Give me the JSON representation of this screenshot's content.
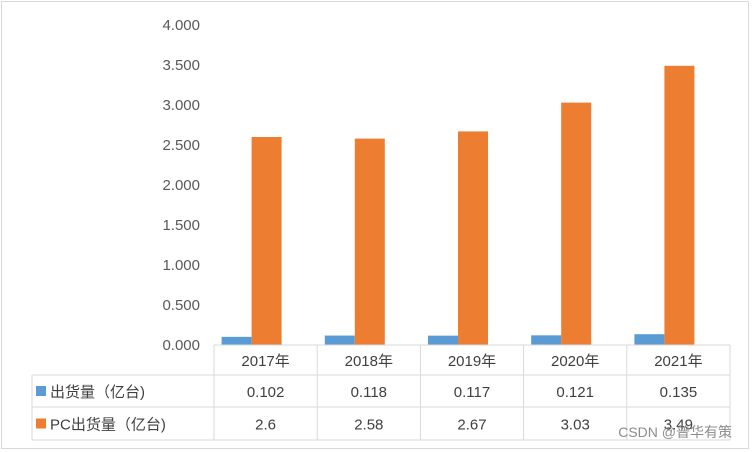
{
  "chart_data": {
    "type": "bar",
    "title": "",
    "xlabel": "",
    "ylabel": "",
    "categories": [
      "2017年",
      "2018年",
      "2019年",
      "2020年",
      "2021年"
    ],
    "series": [
      {
        "name": "出货量（亿台)",
        "values": [
          0.102,
          0.118,
          0.117,
          0.121,
          0.135
        ],
        "labels": [
          "0.102",
          "0.118",
          "0.117",
          "0.121",
          "0.135"
        ],
        "color": "#5b9bd5"
      },
      {
        "name": "PC出货量（亿台)",
        "values": [
          2.6,
          2.58,
          2.67,
          3.03,
          3.49
        ],
        "labels": [
          "2.6",
          "2.58",
          "2.67",
          "3.03",
          "3.49"
        ],
        "color": "#ed7d31"
      }
    ],
    "ylim": [
      0,
      4
    ],
    "yticks": [
      "0.000",
      "0.500",
      "1.000",
      "1.500",
      "2.000",
      "2.500",
      "3.000",
      "3.500",
      "4.000"
    ],
    "grid": false,
    "legend": "data-table"
  },
  "watermark": "CSDN @普华有策"
}
